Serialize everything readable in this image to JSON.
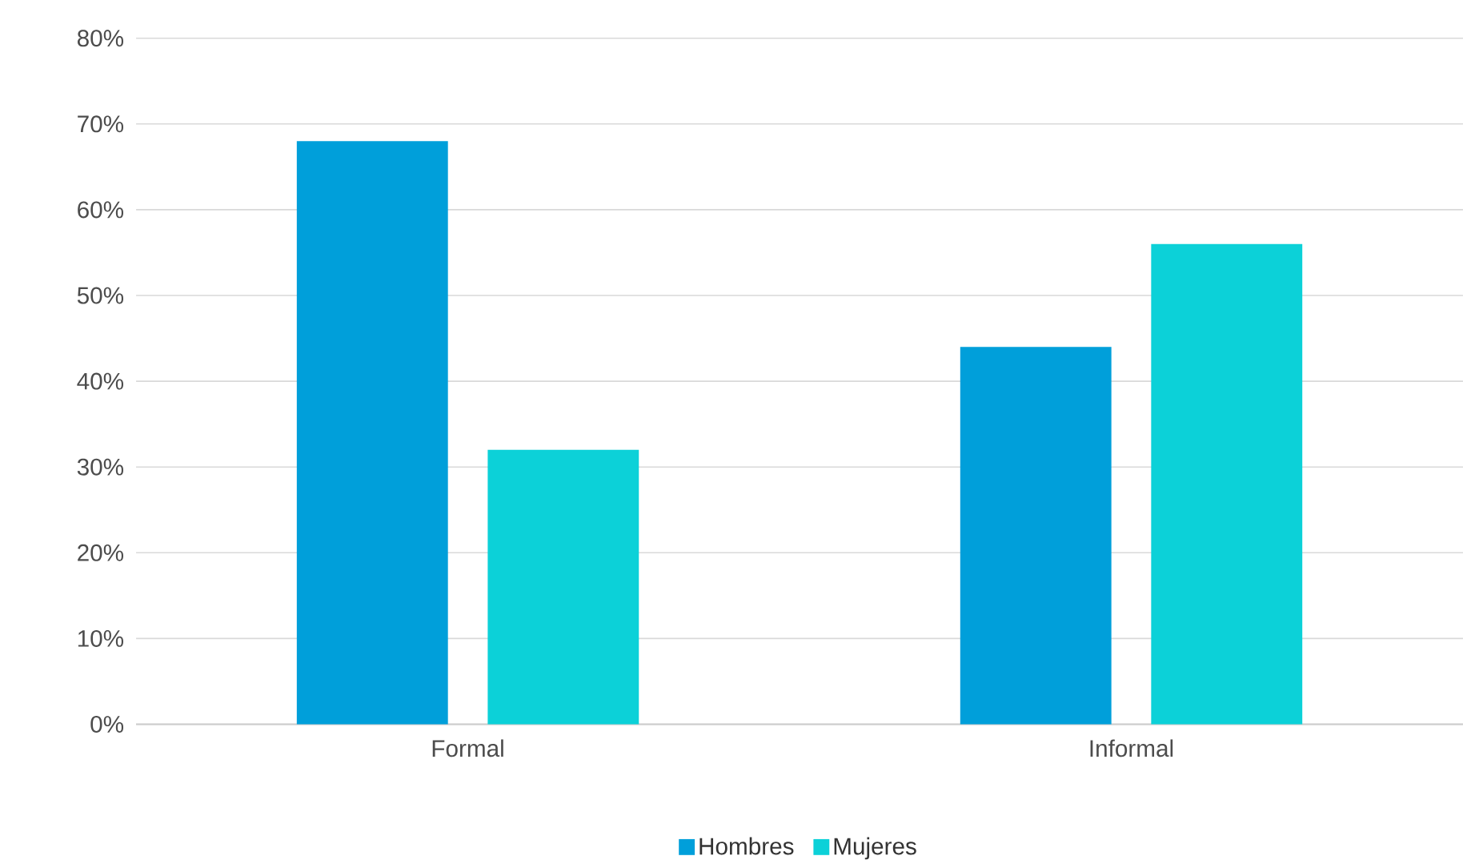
{
  "chart_data": {
    "type": "bar",
    "categories": [
      "Formal",
      "Informal"
    ],
    "series": [
      {
        "name": "Hombres",
        "color": "#009fda",
        "values": [
          68,
          44
        ]
      },
      {
        "name": "Mujeres",
        "color": "#0cd1d8",
        "values": [
          32,
          56
        ]
      }
    ],
    "ylim": [
      0,
      80
    ],
    "yticks": [
      {
        "value": 0,
        "label": "0%"
      },
      {
        "value": 10,
        "label": "10%"
      },
      {
        "value": 20,
        "label": "20%"
      },
      {
        "value": 30,
        "label": "30%"
      },
      {
        "value": 40,
        "label": "40%"
      },
      {
        "value": 50,
        "label": "50%"
      },
      {
        "value": 60,
        "label": "60%"
      },
      {
        "value": 70,
        "label": "70%"
      },
      {
        "value": 80,
        "label": "80%"
      }
    ],
    "grid": "y",
    "legend": "bottom"
  }
}
